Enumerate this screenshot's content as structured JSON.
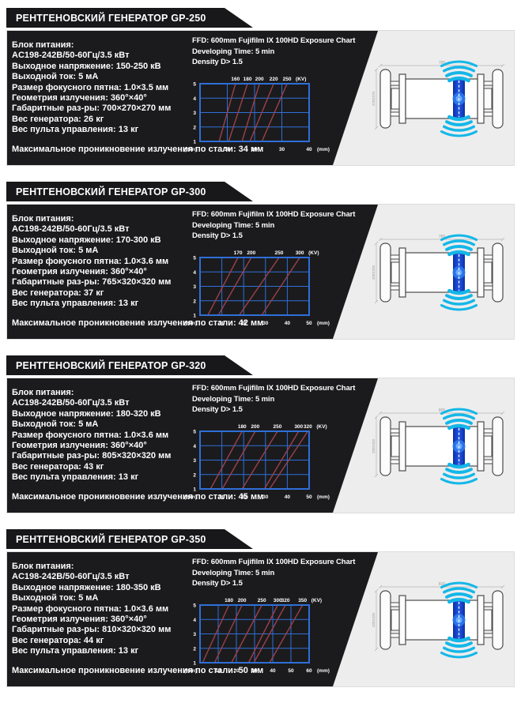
{
  "colors": {
    "panel_black": "#1b1b1d",
    "header_black": "#18181a",
    "card_bg": "#ededed",
    "chart_blue": "#2f6fd9",
    "chart_red": "#9c4149",
    "arc_cyan": "#14b7e8",
    "window_blue": "#1c4fd4",
    "text_white": "#ffffff"
  },
  "cards": [
    {
      "title": "РЕНТГЕНОВСКИЙ ГЕНЕРАТОР GP-250",
      "specs": [
        "Блок питания:",
        "AC198-242В/50-60Гц/3.5 кВт",
        "Выходное напряжение: 150-250 кВ",
        "Выходной ток: 5 мА",
        "Размер фокусного пятна: 1.0×3.5 мм",
        "Геометрия излучения: 360°×40°",
        "Габаритные раз-ры: 700×270×270 мм",
        "Вес генератора: 26 кг",
        "Вес пульта управления: 13 кг",
        "Максимальное проникновение излучения по стали: 34 мм"
      ],
      "exposure_header": [
        "FFD: 600mm Fujifilm IX 100HD Exposure Chart",
        "Developing Time: 5 min",
        "Density D> 1.5"
      ],
      "chart_data": {
        "type": "line",
        "title": "FFD: 600mm Fujifilm IX 100HD Exposure Chart",
        "subtitle": [
          "Developing Time: 5 min",
          "Density D> 1.5"
        ],
        "xlabel": "(mm)",
        "ylabel": "(min)",
        "kv_unit": "(KV)",
        "xlim": [
          0,
          40
        ],
        "ylim": [
          1,
          5
        ],
        "x_ticks": [
          10,
          20,
          30,
          40
        ],
        "y_ticks": [
          1,
          2,
          3,
          4,
          5
        ],
        "grid": true,
        "lines": [
          {
            "kv": 160,
            "x_at_1min": 7.0,
            "x_at_5min": 13.0
          },
          {
            "kv": 180,
            "x_at_1min": 10.5,
            "x_at_5min": 17.4
          },
          {
            "kv": 200,
            "x_at_1min": 15.4,
            "x_at_5min": 21.8
          },
          {
            "kv": 220,
            "x_at_1min": 18.3,
            "x_at_5min": 27.0
          },
          {
            "kv": 250,
            "x_at_1min": 22.7,
            "x_at_5min": 31.9
          }
        ]
      },
      "illustration": {
        "length_label": "700",
        "section_label": "270X270"
      }
    },
    {
      "title": "РЕНТГЕНОВСКИЙ ГЕНЕРАТОР GP-300",
      "specs": [
        "Блок питания:",
        "AC198-242В/50-60Гц/3.5 кВт",
        "Выходное напряжение: 170-300 кВ",
        "Выходной ток: 5 мА",
        "Размер фокусного пятна: 1.0×3.6 мм",
        "Геометрия излучения: 360°×40°",
        "Габаритные раз-ры: 765×320×320 мм",
        "Вес генератора: 37 кг",
        "Вес пульта управления: 13 кг",
        "Максимальное проникновение излучения по стали: 42 мм"
      ],
      "exposure_header": [
        "FFD: 600mm Fujifilm IX 100HD Exposure Chart",
        "Developing Time: 5 min",
        "Density D> 1.5"
      ],
      "chart_data": {
        "type": "line",
        "title": "FFD: 600mm Fujifilm IX 100HD Exposure Chart",
        "subtitle": [
          "Developing Time: 5 min",
          "Density D> 1.5"
        ],
        "xlabel": "(mm)",
        "ylabel": "(min)",
        "kv_unit": "(KV)",
        "xlim": [
          0,
          50
        ],
        "ylim": [
          1,
          5
        ],
        "x_ticks": [
          10,
          20,
          30,
          40,
          50
        ],
        "y_ticks": [
          1,
          2,
          3,
          4,
          5
        ],
        "grid": true,
        "lines": [
          {
            "kv": 170,
            "x_at_1min": 3.6,
            "x_at_5min": 17.4
          },
          {
            "kv": 200,
            "x_at_1min": 8.4,
            "x_at_5min": 23.5
          },
          {
            "kv": 250,
            "x_at_1min": 18.0,
            "x_at_5min": 36.2
          },
          {
            "kv": 300,
            "x_at_1min": 28.3,
            "x_at_5min": 45.7
          }
        ]
      },
      "illustration": {
        "length_label": "765",
        "section_label": "320X320"
      }
    },
    {
      "title": "РЕНТГЕНОВСКИЙ ГЕНЕРАТОР GP-320",
      "specs": [
        "Блок питания:",
        "AC198-242В/50-60Гц/3.5 кВт",
        "Выходное напряжение: 180-320 кВ",
        "Выходной ток: 5 мА",
        "Размер фокусного пятна: 1.0×3.6 мм",
        "Геометрия излучения: 360°×40°",
        "Габаритные раз-ры: 805×320×320 мм",
        "Вес генератора: 43 кг",
        "Вес пульта управления: 13 кг",
        "Максимальное проникновение излучения по стали: 45 мм"
      ],
      "exposure_header": [
        "FFD: 600mm Fujifilm IX 100HD Exposure Chart",
        "Developing Time: 5 min",
        "Density D> 1.5"
      ],
      "chart_data": {
        "type": "line",
        "title": "FFD: 600mm Fujifilm IX 100HD Exposure Chart",
        "subtitle": [
          "Developing Time: 5 min",
          "Density D> 1.5"
        ],
        "xlabel": "(mm)",
        "ylabel": "(min)",
        "kv_unit": "(KV)",
        "xlim": [
          0,
          50
        ],
        "ylim": [
          1,
          5
        ],
        "x_ticks": [
          10,
          20,
          30,
          40,
          50
        ],
        "y_ticks": [
          1,
          2,
          3,
          4,
          5
        ],
        "grid": true,
        "lines": [
          {
            "kv": 180,
            "x_at_1min": 4.8,
            "x_at_5min": 19.3
          },
          {
            "kv": 200,
            "x_at_1min": 10.2,
            "x_at_5min": 25.3
          },
          {
            "kv": 250,
            "x_at_1min": 19.3,
            "x_at_5min": 35.5
          },
          {
            "kv": 300,
            "x_at_1min": 29.5,
            "x_at_5min": 45.2
          },
          {
            "kv": 320,
            "x_at_1min": 31.9,
            "x_at_5min": 49.4
          }
        ]
      },
      "illustration": {
        "length_label": "805",
        "section_label": "320X320"
      }
    },
    {
      "title": "РЕНТГЕНОВСКИЙ ГЕНЕРАТОР GP-350",
      "specs": [
        "Блок питания:",
        "AC198-242В/50-60Гц/3.5 кВт",
        "Выходное напряжение: 180-350 кВ",
        "Выходной ток: 5 мА",
        "Размер фокусного пятна: 1.0×3.6 мм",
        "Геометрия излучения: 360°×40°",
        "Габаритные раз-ры: 810×320×320 мм",
        "Вес генератора: 44 кг",
        "Вес пульта управления: 13 кг",
        "Максимальное проникновение излучения по стали: 50 мм"
      ],
      "exposure_header": [
        "FFD: 600mm Fujifilm IX 100HD Exposure Chart",
        "Developing Time: 5 min",
        "Density D> 1.5"
      ],
      "chart_data": {
        "type": "line",
        "title": "FFD: 600mm Fujifilm IX 100HD Exposure Chart",
        "subtitle": [
          "Developing Time: 5 min",
          "Density D> 1.5"
        ],
        "xlabel": "(mm)",
        "ylabel": "(min)",
        "kv_unit": "(KV)",
        "xlim": [
          0,
          60
        ],
        "ylim": [
          1,
          5
        ],
        "x_ticks": [
          10,
          20,
          30,
          40,
          50,
          60
        ],
        "y_ticks": [
          1,
          2,
          3,
          4,
          5
        ],
        "grid": true,
        "lines": [
          {
            "kv": 180,
            "x_at_1min": 1.4,
            "x_at_5min": 15.9
          },
          {
            "kv": 200,
            "x_at_1min": 8.0,
            "x_at_5min": 23.1
          },
          {
            "kv": 250,
            "x_at_1min": 17.3,
            "x_at_5min": 34.0
          },
          {
            "kv": 300,
            "x_at_1min": 26.7,
            "x_at_5min": 42.7
          },
          {
            "kv": 320,
            "x_at_1min": 29.6,
            "x_at_5min": 47.0
          },
          {
            "kv": 350,
            "x_at_1min": 38.3,
            "x_at_5min": 56.4
          }
        ]
      },
      "illustration": {
        "length_label": "810",
        "section_label": "320X320"
      }
    }
  ]
}
